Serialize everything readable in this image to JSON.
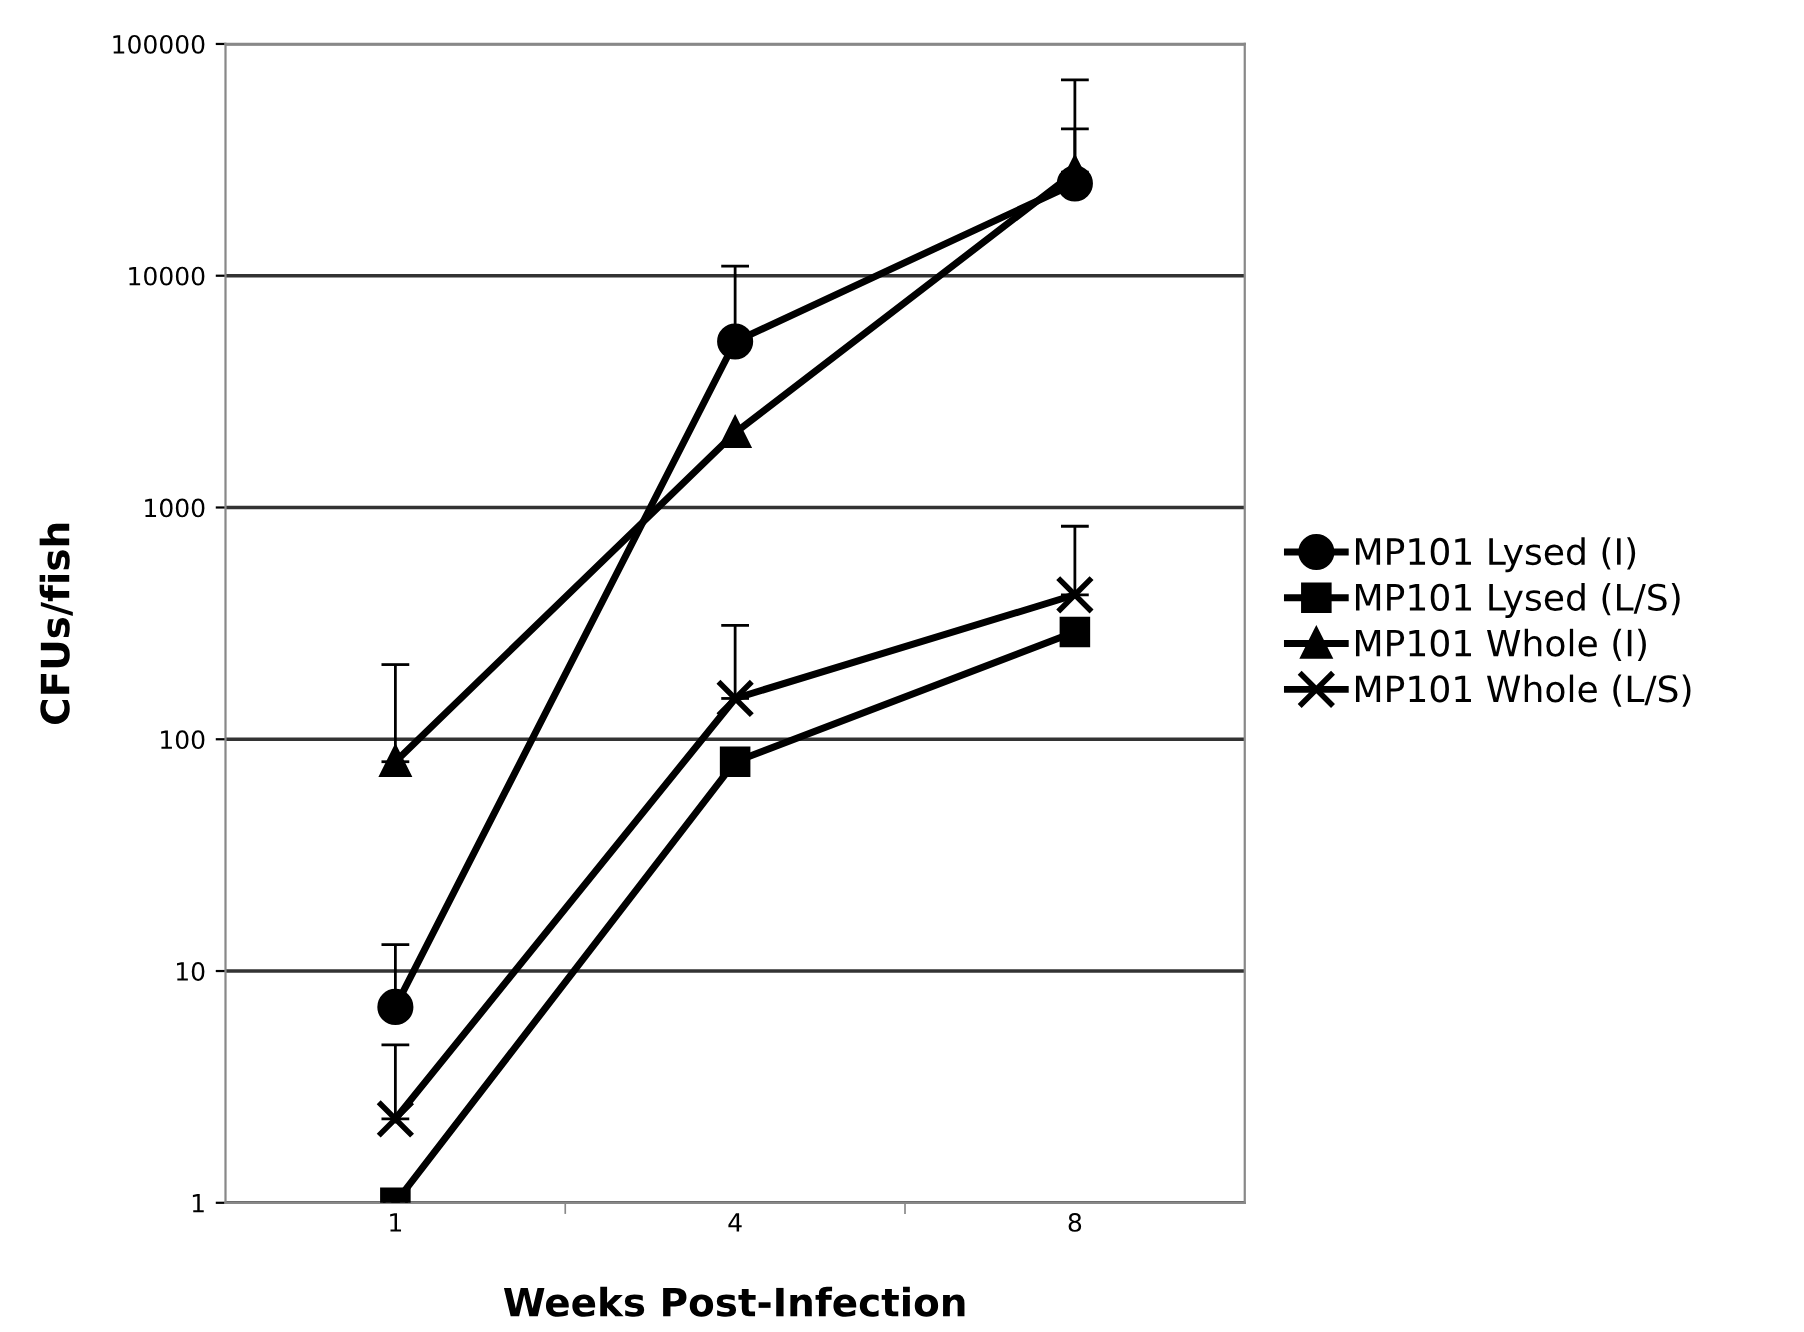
{
  "chart_data": {
    "type": "line",
    "xlabel": "Weeks Post-Infection",
    "ylabel": "CFUs/fish",
    "categories": [
      "1",
      "4",
      "8"
    ],
    "series": [
      {
        "name": "MP101 Lysed (I)",
        "color": "#000000",
        "marker": "circle",
        "values": [
          7,
          5200,
          25000
        ],
        "errors": [
          [
            7,
            13
          ],
          [
            5200,
            11000
          ],
          [
            25000,
            43000
          ]
        ]
      },
      {
        "name": "MP101 Lysed (L/S)",
        "color": "#000000",
        "marker": "square",
        "values": [
          1,
          80,
          290
        ]
      },
      {
        "name": "MP101 Whole (I)",
        "color": "#000000",
        "marker": "triangle",
        "values": [
          80,
          2100,
          28000
        ],
        "errors": [
          [
            80,
            210
          ],
          null,
          [
            28000,
            70000
          ]
        ]
      },
      {
        "name": "MP101 Whole (L/S)",
        "color": "#000000",
        "marker": "cross",
        "values": [
          2.3,
          150,
          420
        ],
        "errors": [
          [
            2.3,
            4.8
          ],
          [
            150,
            310
          ],
          [
            420,
            830
          ]
        ]
      }
    ],
    "log": "y",
    "ylim": [
      1,
      100000
    ],
    "yticks": [
      1,
      10,
      100,
      1000,
      10000,
      100000
    ],
    "grid": "y",
    "legend": "right",
    "line_style": "solid"
  }
}
